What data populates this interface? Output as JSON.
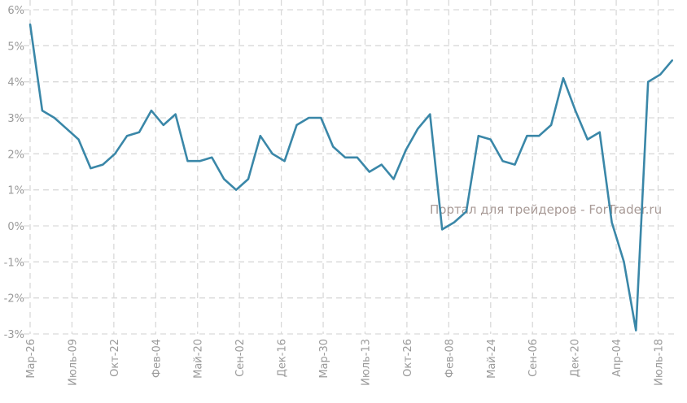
{
  "chart_data": {
    "type": "line",
    "title": "",
    "xlabel": "",
    "ylabel": "",
    "ylim": [
      -3,
      6
    ],
    "yticks": [
      "6%",
      "5%",
      "4%",
      "3%",
      "2%",
      "1%",
      "0%",
      "-1%",
      "-2%",
      "-3%"
    ],
    "ytick_values": [
      6,
      5,
      4,
      3,
      2,
      1,
      0,
      -1,
      -2,
      -3
    ],
    "xtick_labels": [
      "Мар-26",
      "Июль-09",
      "Окт-22",
      "Фев-04",
      "Май-20",
      "Сен-02",
      "Дек-16",
      "Мар-30",
      "Июль-13",
      "Окт-26",
      "Фев-08",
      "Май-24",
      "Сен-06",
      "Дек-20",
      "Апр-04",
      "Июль-18"
    ],
    "xtick_step_points": 3.455,
    "grid": true,
    "series": [
      {
        "name": "value",
        "color": "#3a87a8",
        "values": [
          5.6,
          3.2,
          3.0,
          2.7,
          2.4,
          1.6,
          1.7,
          2.0,
          2.5,
          2.6,
          3.2,
          2.8,
          3.1,
          1.8,
          1.8,
          1.9,
          1.3,
          1.0,
          1.3,
          2.5,
          2.0,
          1.8,
          2.8,
          3.0,
          3.0,
          2.2,
          1.9,
          1.9,
          1.5,
          1.7,
          1.3,
          2.1,
          2.7,
          3.1,
          -0.1,
          0.1,
          0.4,
          2.5,
          2.4,
          1.8,
          1.7,
          2.5,
          2.5,
          2.8,
          4.1,
          3.2,
          2.4,
          2.6,
          0.1,
          -1.0,
          -2.9,
          4.0,
          4.2,
          4.6
        ]
      }
    ],
    "watermark": "Портал для трейдеров - ForTrader.ru"
  }
}
